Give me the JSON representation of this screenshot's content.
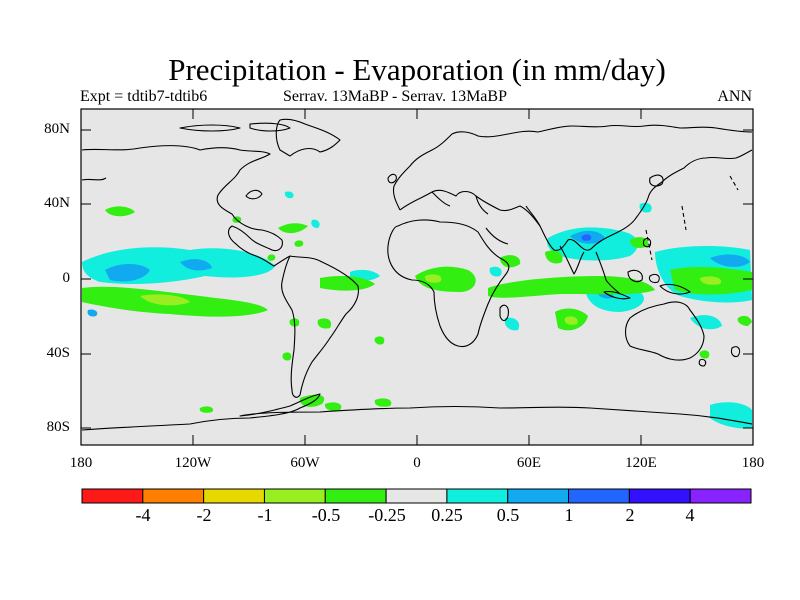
{
  "title": "Precipitation - Evaporation (in mm/day)",
  "subtitle_left": "Expt = tdtib7-tdtib6",
  "subtitle_center": "Serrav.   13MaBP - Serrav.   13MaBP",
  "subtitle_right": "ANN",
  "y_ticks": [
    "80N",
    "40N",
    "0",
    "40S",
    "80S"
  ],
  "x_ticks": [
    "180",
    "120W",
    "60W",
    "0",
    "60E",
    "120E",
    "180"
  ],
  "colorbar": {
    "colors": [
      "#ff1a1a",
      "#ff8000",
      "#e6d800",
      "#99ee22",
      "#33ee11",
      "#e6e6e6",
      "#11eedd",
      "#11aaf0",
      "#2266ff",
      "#3311ff",
      "#8822ff"
    ],
    "labels": [
      "-4",
      "-2",
      "-1",
      "-0.5",
      "-0.25",
      "0.25",
      "0.5",
      "1",
      "2",
      "4"
    ]
  }
}
